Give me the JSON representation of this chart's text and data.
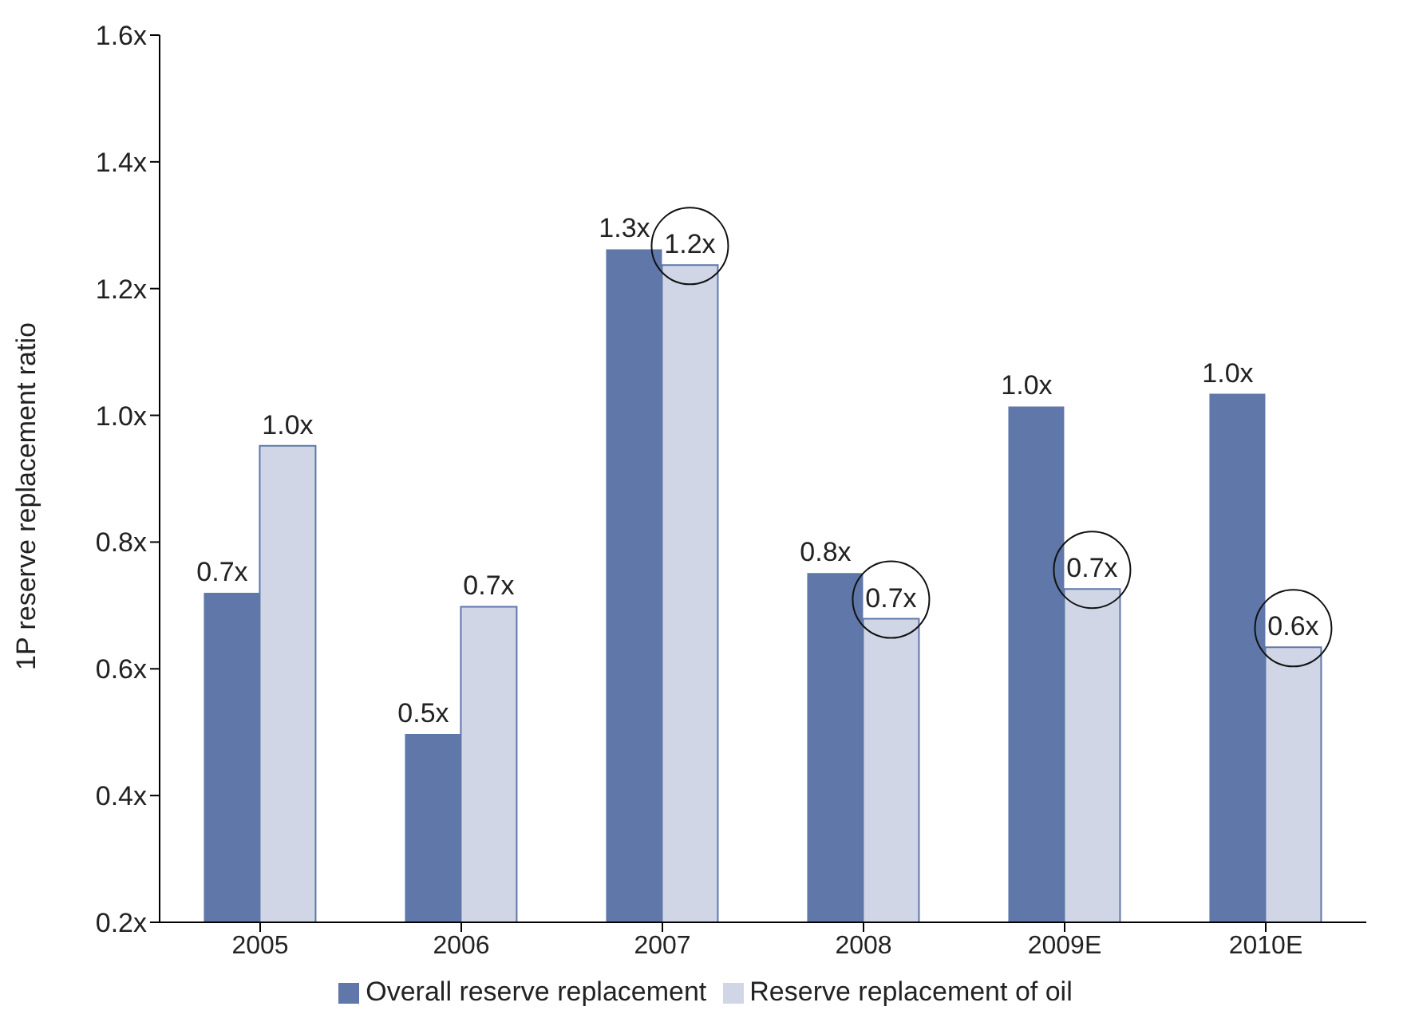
{
  "chart_data": {
    "type": "bar",
    "ylabel": "1P reserve replacement ratio",
    "categories": [
      "2005",
      "2006",
      "2007",
      "2008",
      "2009E",
      "2010E"
    ],
    "series": [
      {
        "name": "Overall reserve replacement",
        "color": "#5f77a9",
        "values": [
          0.72,
          0.497,
          1.262,
          0.751,
          1.014,
          1.034
        ],
        "value_labels": [
          "0.7x",
          "0.5x",
          "1.3x",
          "0.8x",
          "1.0x",
          "1.0x"
        ]
      },
      {
        "name": "Reserve replacement of oil",
        "color": "#d0d6e6",
        "values": [
          0.952,
          0.698,
          1.237,
          0.679,
          0.726,
          0.634
        ],
        "value_labels": [
          "1.0x",
          "0.7x",
          "1.2x",
          "0.7x",
          "0.7x",
          "0.6x"
        ]
      }
    ],
    "ylim": [
      0.2,
      1.6
    ],
    "yticks": [
      {
        "value": 0.2,
        "label": "0.2x"
      },
      {
        "value": 0.4,
        "label": "0.4x"
      },
      {
        "value": 0.6,
        "label": "0.6x"
      },
      {
        "value": 0.8,
        "label": "0.8x"
      },
      {
        "value": 1.0,
        "label": "1.0x"
      },
      {
        "value": 1.2,
        "label": "1.2x"
      },
      {
        "value": 1.4,
        "label": "1.4x"
      },
      {
        "value": 1.6,
        "label": "1.6x"
      }
    ],
    "grid": false,
    "legend": "bottom"
  }
}
